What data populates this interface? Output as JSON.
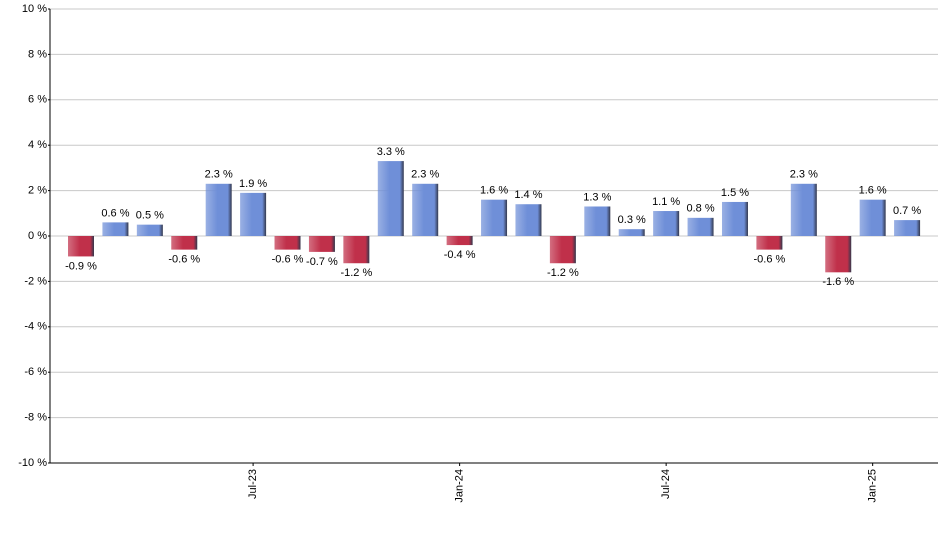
{
  "chart_data": {
    "type": "bar",
    "categories": [
      null,
      null,
      null,
      null,
      null,
      "Jul-23",
      null,
      null,
      null,
      null,
      null,
      "Jan-24",
      null,
      null,
      null,
      null,
      null,
      "Jul-24",
      null,
      null,
      null,
      null,
      null,
      "Jan-25",
      null
    ],
    "values": [
      -0.9,
      0.6,
      0.5,
      -0.6,
      2.3,
      1.9,
      -0.6,
      -0.7,
      -1.2,
      3.3,
      2.3,
      -0.4,
      1.6,
      1.4,
      -1.2,
      1.3,
      0.3,
      1.1,
      0.8,
      1.5,
      -0.6,
      2.3,
      -1.6,
      1.6,
      0.7
    ],
    "value_labels": [
      "-0.9 %",
      "0.6 %",
      "0.5 %",
      "-0.6 %",
      "2.3 %",
      "1.9 %",
      "-0.6 %",
      "-0.7 %",
      "-1.2 %",
      "3.3 %",
      "2.3 %",
      "-0.4 %",
      "1.6 %",
      "1.4 %",
      "-1.2 %",
      "1.3 %",
      "0.3 %",
      "1.1 %",
      "0.8 %",
      "1.5 %",
      "-0.6 %",
      "2.3 %",
      "-1.6 %",
      "1.6 %",
      "0.7 %"
    ],
    "color": "#6f8fd8",
    "negative_color": "#c0304a",
    "ylim": [
      -10,
      10
    ],
    "yticks": [
      {
        "value": -10,
        "label": "-10 %"
      },
      {
        "value": -8,
        "label": "-8 %"
      },
      {
        "value": -6,
        "label": "-6 %"
      },
      {
        "value": -4,
        "label": "-4 %"
      },
      {
        "value": -2,
        "label": "-2 %"
      },
      {
        "value": 0,
        "label": "0 %"
      },
      {
        "value": 2,
        "label": "2 %"
      },
      {
        "value": 4,
        "label": "4 %"
      },
      {
        "value": 6,
        "label": "6 %"
      },
      {
        "value": 8,
        "label": "8 %"
      },
      {
        "value": 10,
        "label": "10 %"
      }
    ],
    "grid": true
  }
}
